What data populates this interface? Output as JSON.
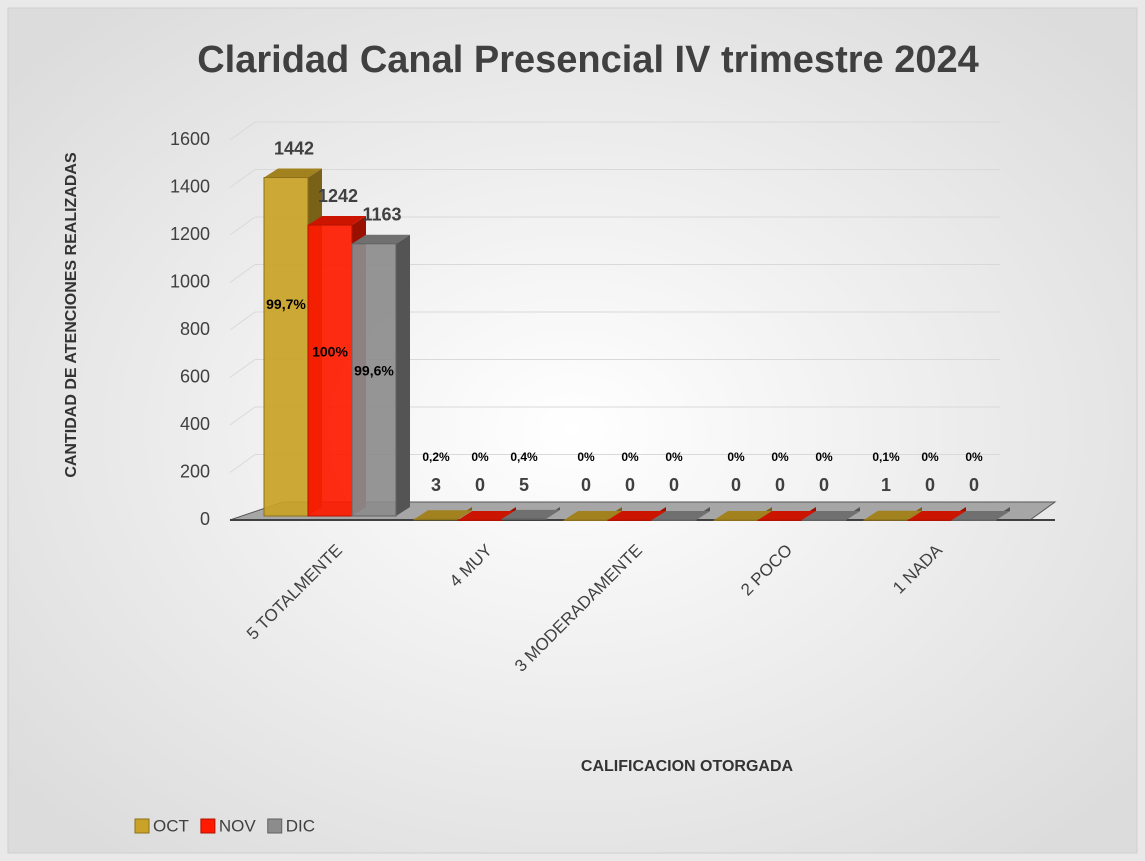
{
  "chart_data": {
    "type": "bar3d",
    "title": "Claridad Canal Presencial  IV trimestre 2024",
    "y_label": "CANTIDAD DE ATENCIONES REALIZADAS",
    "x_label": "CALIFICACION OTORGADA",
    "categories": [
      "5 TOTALMENTE",
      "4 MUY",
      "3 MODERADAMENTE",
      "2 POCO",
      "1 NADA"
    ],
    "series": [
      {
        "name": "OCT",
        "color": "#c9a227",
        "values": [
          1442,
          3,
          0,
          0,
          1
        ],
        "percent_labels": [
          "99,7%",
          "0,2%",
          "0%",
          "0%",
          "0,1%"
        ]
      },
      {
        "name": "NOV",
        "color": "#ff1a00",
        "values": [
          1242,
          0,
          0,
          0,
          0
        ],
        "percent_labels": [
          "100%",
          "0%",
          "0%",
          "0%",
          "0%"
        ]
      },
      {
        "name": "DIC",
        "color": "#8c8c8c",
        "values": [
          1163,
          5,
          0,
          0,
          0
        ],
        "percent_labels": [
          "99,6%",
          "0,4%",
          "0%",
          "0%",
          "0%"
        ]
      }
    ],
    "ylim": [
      0,
      1600
    ],
    "yticks": [
      0,
      200,
      400,
      600,
      800,
      1000,
      1200,
      1400,
      1600
    ],
    "grid": true,
    "legend": "bottom-left"
  }
}
